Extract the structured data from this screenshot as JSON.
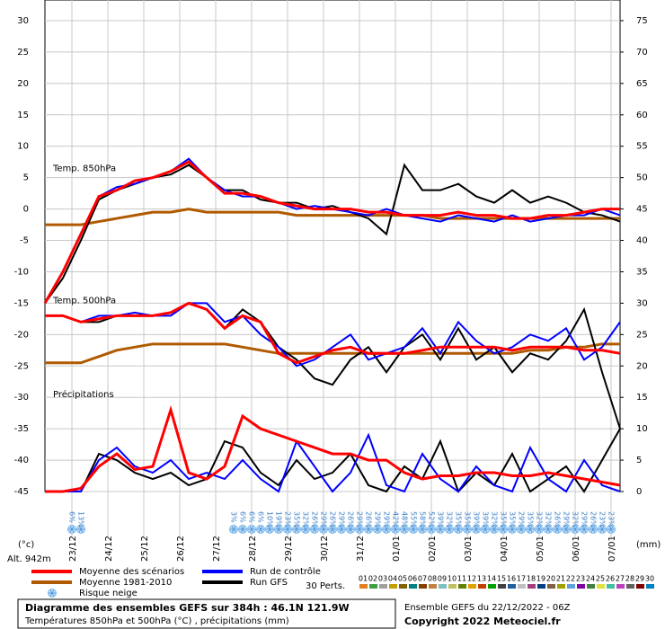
{
  "chart_data": {
    "type": "line",
    "annotations": [
      {
        "text": "Temp. 850hPa",
        "x": 4,
        "y": 7
      },
      {
        "text": "Temp. 500hPa",
        "x": 4,
        "y": -14
      },
      {
        "text": "Précipitations",
        "x": 4,
        "y": -29
      }
    ],
    "ylabel": "(°c)",
    "y2label": "(mm)",
    "altitude": "Alt. 942m",
    "xlim": [
      0,
      384
    ],
    "ylim": [
      -45,
      30
    ],
    "y2lim": [
      0,
      75
    ],
    "yticks": [
      -45,
      -40,
      -35,
      -30,
      -25,
      -20,
      -15,
      -10,
      -5,
      0,
      5,
      10,
      15,
      20,
      25,
      30
    ],
    "y2ticks": [
      0,
      5,
      10,
      15,
      20,
      25,
      30,
      35,
      40,
      45,
      50,
      55,
      60,
      65,
      70,
      75
    ],
    "xticks": [
      {
        "value": 18,
        "label": "23/12"
      },
      {
        "value": 42,
        "label": "24/12"
      },
      {
        "value": 66,
        "label": "25/12"
      },
      {
        "value": 90,
        "label": "26/12"
      },
      {
        "value": 114,
        "label": "27/12"
      },
      {
        "value": 138,
        "label": "28/12"
      },
      {
        "value": 162,
        "label": "29/12"
      },
      {
        "value": 186,
        "label": "30/12"
      },
      {
        "value": 210,
        "label": "31/12"
      },
      {
        "value": 234,
        "label": "01/01"
      },
      {
        "value": 258,
        "label": "02/01"
      },
      {
        "value": 282,
        "label": "03/01"
      },
      {
        "value": 306,
        "label": "04/01"
      },
      {
        "value": 330,
        "label": "05/01"
      },
      {
        "value": 354,
        "label": "06/01"
      },
      {
        "value": 378,
        "label": "07/01"
      }
    ],
    "grid": true,
    "x": [
      0,
      12,
      24,
      36,
      48,
      60,
      72,
      84,
      96,
      108,
      120,
      132,
      144,
      156,
      168,
      180,
      192,
      204,
      216,
      228,
      240,
      252,
      264,
      276,
      288,
      300,
      312,
      324,
      336,
      348,
      360,
      372,
      384
    ],
    "series": [
      {
        "color": "#b05a00",
        "values": [
          -2.5,
          -2.5,
          -2.5,
          -2,
          -1.5,
          -1,
          -0.5,
          -0.5,
          0,
          -0.5,
          -0.5,
          -0.5,
          -0.5,
          -0.5,
          -1,
          -1,
          -1,
          -1,
          -1,
          -1,
          -1,
          -1,
          -1.5,
          -1.5,
          -1.5,
          -1.5,
          -1.5,
          -1.5,
          -1.5,
          -1.5,
          -1.5,
          -1.5,
          -1.5
        ]
      },
      {
        "color": "#000000",
        "values": [
          -15,
          -11,
          -5,
          1.5,
          3,
          4,
          5,
          5.5,
          7,
          5,
          3,
          3,
          1.5,
          1,
          1,
          0,
          0.5,
          -0.5,
          -1.5,
          -4,
          7,
          3,
          3,
          4,
          2,
          1,
          3,
          1,
          2,
          1,
          -0.5,
          -1,
          -2
        ]
      },
      {
        "color": "#0000ff",
        "values": [
          -15,
          -10,
          -4,
          2,
          3.5,
          4,
          5,
          6,
          8,
          5,
          3,
          2,
          2,
          1,
          0,
          0.5,
          0,
          -0.5,
          -1,
          0,
          -1,
          -1.5,
          -2,
          -1,
          -1.5,
          -2,
          -1,
          -2,
          -1.5,
          -1,
          -1,
          0,
          -1
        ]
      },
      {
        "color": "#ff0000",
        "values": [
          -15,
          -10,
          -4,
          2,
          3,
          4.5,
          5,
          6,
          7.5,
          5,
          2.5,
          2.5,
          2,
          1,
          0.5,
          0,
          0,
          0,
          -0.5,
          -0.5,
          -1,
          -1,
          -1,
          -0.5,
          -1,
          -1,
          -1.5,
          -1.5,
          -1,
          -1,
          -0.5,
          0,
          0
        ]
      },
      {
        "color": "#b05a00",
        "values": [
          -24.5,
          -24.5,
          -24.5,
          -23.5,
          -22.5,
          -22,
          -21.5,
          -21.5,
          -21.5,
          -21.5,
          -21.5,
          -22,
          -22.5,
          -23,
          -23,
          -23,
          -23,
          -23,
          -23,
          -23,
          -23,
          -23,
          -23,
          -23,
          -23,
          -23,
          -23,
          -22.5,
          -22.5,
          -22,
          -22,
          -21.5,
          -21.5
        ]
      },
      {
        "color": "#000000",
        "values": [
          -17,
          -17,
          -18,
          -18,
          -17,
          -17,
          -17,
          -16.5,
          -15,
          -16,
          -19,
          -16,
          -18,
          -22,
          -24,
          -27,
          -28,
          -24,
          -22,
          -26,
          -22,
          -20,
          -24,
          -19,
          -24,
          -22,
          -26,
          -23,
          -24,
          -21,
          -16,
          -26,
          -35
        ]
      },
      {
        "color": "#0000ff",
        "values": [
          -17,
          -17,
          -18,
          -17,
          -17,
          -16.5,
          -17,
          -17,
          -15,
          -15,
          -18,
          -17,
          -20,
          -22,
          -25,
          -24,
          -22,
          -20,
          -24,
          -23,
          -22,
          -19,
          -23,
          -18,
          -21,
          -23,
          -22,
          -20,
          -21,
          -19,
          -24,
          -22,
          -18
        ]
      },
      {
        "color": "#ff0000",
        "values": [
          -17,
          -17,
          -18,
          -17.5,
          -17,
          -17,
          -17,
          -16.5,
          -15,
          -16,
          -19,
          -17,
          -18,
          -23,
          -24.5,
          -23.5,
          -22.5,
          -22,
          -23,
          -23,
          -23,
          -22.5,
          -22,
          -22,
          -22,
          -22,
          -22.5,
          -22,
          -22,
          -22,
          -22.5,
          -22.5,
          -23
        ]
      },
      {
        "color": "#000000",
        "axis": "y2",
        "values": [
          0,
          0,
          0,
          6,
          5,
          3,
          2,
          3,
          1,
          2,
          8,
          7,
          3,
          1,
          5,
          2,
          3,
          6,
          1,
          0,
          4,
          2,
          8,
          0,
          3,
          1,
          6,
          0,
          2,
          4,
          0,
          5,
          10
        ]
      },
      {
        "color": "#0000ff",
        "axis": "y2",
        "values": [
          0,
          0,
          0,
          5,
          7,
          4,
          3,
          5,
          2,
          3,
          2,
          5,
          2,
          0,
          8,
          4,
          0,
          3,
          9,
          1,
          0,
          6,
          2,
          0,
          4,
          1,
          0,
          7,
          2,
          0,
          5,
          1,
          0
        ]
      },
      {
        "color": "#ff0000",
        "axis": "y2",
        "values": [
          0,
          0,
          0.5,
          4,
          6,
          3.5,
          4,
          13,
          3,
          2,
          4,
          12,
          10,
          9,
          8,
          7,
          6,
          6,
          5,
          5,
          3,
          2,
          2.5,
          2.5,
          3,
          3,
          2.5,
          2.5,
          3,
          2.5,
          2,
          1.5,
          1
        ]
      }
    ],
    "snow_risk": {
      "label": "Risque neige",
      "x": [
        18,
        24,
        126,
        132,
        138,
        144,
        150,
        156,
        162,
        168,
        174,
        180,
        186,
        192,
        198,
        204,
        210,
        216,
        222,
        228,
        234,
        240,
        246,
        252,
        258,
        264,
        270,
        276,
        282,
        288,
        294,
        300,
        306,
        312,
        318,
        324,
        330,
        336,
        342,
        348,
        354,
        360,
        366,
        372,
        378
      ],
      "values": [
        6,
        13,
        3,
        6,
        6,
        6,
        10,
        19,
        23,
        35,
        32,
        26,
        29,
        26,
        29,
        26,
        29,
        26,
        29,
        29,
        42,
        48,
        55,
        58,
        52,
        39,
        32,
        35,
        35,
        39,
        39,
        32,
        35,
        35,
        29,
        35,
        32,
        32,
        26,
        29,
        32,
        29,
        26,
        23,
        23
      ],
      "value_labels": [
        "6%",
        "13%",
        "3%",
        "6%",
        "6%",
        "6%",
        "10%",
        "19%",
        "23%",
        "35%",
        "32%",
        "26%",
        "29%",
        "26%",
        "29%",
        "26%",
        "29%",
        "26%",
        "29%",
        "29%",
        "42%",
        "48%",
        "55%",
        "58%",
        "52%",
        "39%",
        "32%",
        "35%",
        "35%",
        "39%",
        "39%",
        "32%",
        "35%",
        "35%",
        "29%",
        "35%",
        "32%",
        "32%",
        "26%",
        "29%",
        "32%",
        "29%",
        "26%",
        "23%",
        "23%"
      ]
    },
    "legend": [
      {
        "name": "Moyenne des scénarios",
        "color": "#ff0000"
      },
      {
        "name": "Moyenne 1981-2010",
        "color": "#b05a00"
      },
      {
        "name": "Run de contrôle",
        "color": "#0000ff"
      },
      {
        "name": "Run GFS",
        "color": "#000000"
      }
    ],
    "perturbations_label": "30 Perts.",
    "perturbations": [
      {
        "label": "01",
        "color": "#e08020"
      },
      {
        "label": "02",
        "color": "#40a040"
      },
      {
        "label": "03",
        "color": "#a0a0a0"
      },
      {
        "label": "04",
        "color": "#c0a000"
      },
      {
        "label": "05",
        "color": "#806000"
      },
      {
        "label": "06",
        "color": "#008080"
      },
      {
        "label": "07",
        "color": "#804000"
      },
      {
        "label": "08",
        "color": "#c08040"
      },
      {
        "label": "09",
        "color": "#80c0c0"
      },
      {
        "label": "10",
        "color": "#c0c060"
      },
      {
        "label": "11",
        "color": "#608000"
      },
      {
        "label": "12",
        "color": "#e0a000"
      },
      {
        "label": "13",
        "color": "#c04000"
      },
      {
        "label": "14",
        "color": "#00a000"
      },
      {
        "label": "15",
        "color": "#404040"
      },
      {
        "label": "16",
        "color": "#2060a0"
      },
      {
        "label": "17",
        "color": "#c0c0c0"
      },
      {
        "label": "18",
        "color": "#a04080"
      },
      {
        "label": "19",
        "color": "#004080"
      },
      {
        "label": "20",
        "color": "#806040"
      },
      {
        "label": "21",
        "color": "#a0a000"
      },
      {
        "label": "22",
        "color": "#60a0e0"
      },
      {
        "label": "23",
        "color": "#8000a0"
      },
      {
        "label": "24",
        "color": "#408040"
      },
      {
        "label": "25",
        "color": "#e0e040"
      },
      {
        "label": "26",
        "color": "#40c0a0"
      },
      {
        "label": "27",
        "color": "#c040c0"
      },
      {
        "label": "28",
        "color": "#606060"
      },
      {
        "label": "29",
        "color": "#800000"
      },
      {
        "label": "30",
        "color": "#0080c0"
      }
    ],
    "footer": {
      "title": "Diagramme des ensembles GEFS sur 384h : 46.1N 121.9W",
      "subtitle": "Températures 850hPa et 500hPa (°C) , précipitations (mm)",
      "run": "Ensemble GEFS du 22/12/2022 - 06Z",
      "copyright": "Copyright 2022 Meteociel.fr"
    }
  }
}
